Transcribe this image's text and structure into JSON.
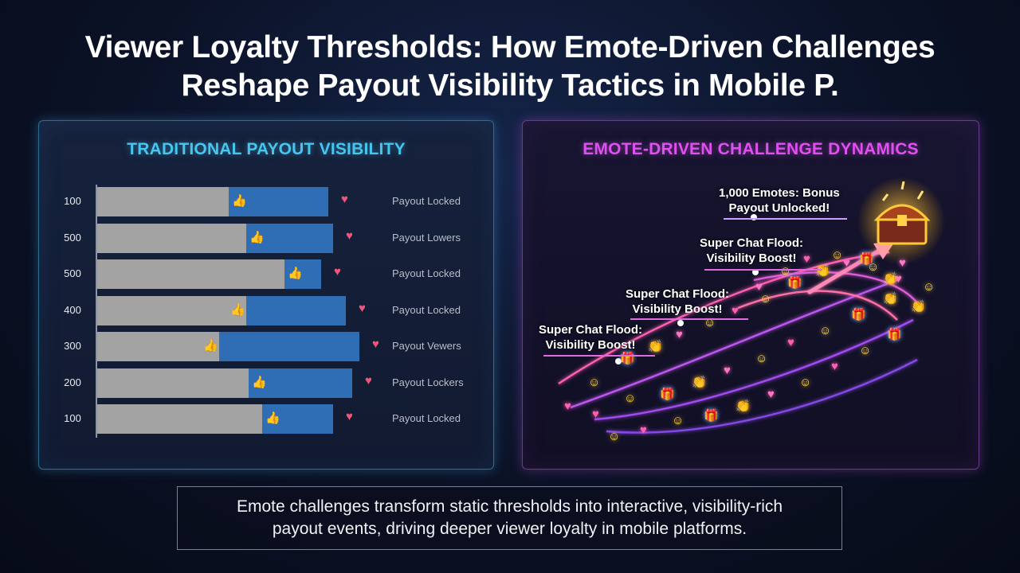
{
  "title": {
    "line1": "Viewer Loyalty Thresholds: How Emote-Driven Challenges",
    "line2": "Reshape Payout Visibility Tactics in Mobile P."
  },
  "left_panel": {
    "title": "TRADITIONAL PAYOUT VISIBILITY",
    "rows": [
      {
        "label": "100",
        "status": "Payout Locked",
        "gray_fraction": 0.486,
        "total_fraction": 0.853
      },
      {
        "label": "500",
        "status": "Payout Lowers",
        "gray_fraction": 0.55,
        "total_fraction": 0.872
      },
      {
        "label": "500",
        "status": "Payout Locked",
        "gray_fraction": 0.69,
        "total_fraction": 0.826
      },
      {
        "label": "400",
        "status": "Payout Locked",
        "gray_fraction": 0.55,
        "total_fraction": 0.917
      },
      {
        "label": "300",
        "status": "Payout Vewers",
        "gray_fraction": 0.45,
        "total_fraction": 0.968
      },
      {
        "label": "200",
        "status": "Payout Lockers",
        "gray_fraction": 0.56,
        "total_fraction": 0.94
      },
      {
        "label": "100",
        "status": "Payout Locked",
        "gray_fraction": 0.61,
        "total_fraction": 0.87
      }
    ]
  },
  "right_panel": {
    "title": "EMOTE-DRIVEN CHALLENGE DYNAMICS",
    "callouts": [
      {
        "line1": "1,000 Emotes: Bonus",
        "line2": "Payout Unlocked!"
      },
      {
        "line1": "Super Chat Flood:",
        "line2": "Visibility Boost!"
      },
      {
        "line1": "Super Chat Flood:",
        "line2": "Visibility Boost!"
      },
      {
        "line1": "Super Chat Flood:",
        "line2": "Visibility Boost!"
      }
    ]
  },
  "caption": {
    "line1": "Emote challenges transform static thresholds into interactive, visibility-rich",
    "line2": "payout events, driving deeper viewer loyalty in mobile platforms."
  },
  "colors": {
    "gray_bar": "#a3a3a3",
    "blue_bar": "#2f6db4",
    "left_accent": "#46c6ef",
    "right_accent": "#e04ff0",
    "heart": "#f2547e"
  },
  "icons": [
    "thumbs-up-icon",
    "heart-icon",
    "emote-icon",
    "gift-icon",
    "treasure-chest-icon",
    "arrow-icon"
  ]
}
